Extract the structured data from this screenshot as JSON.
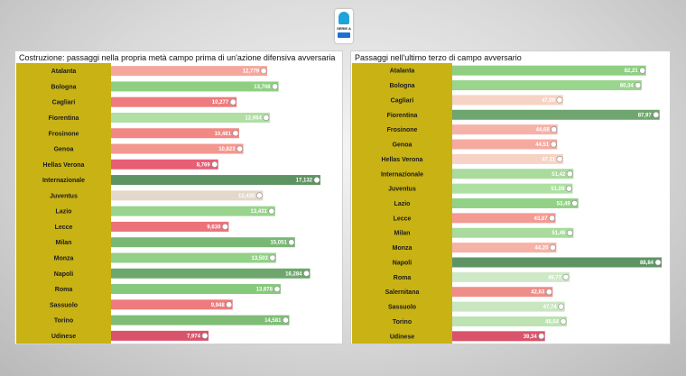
{
  "logo": {
    "text": "SERIE A"
  },
  "chart_data": [
    {
      "type": "bar",
      "orientation": "horizontal",
      "title": "Costruzione: passaggi nella propria metà campo prima di un'azione difensiva avversaria",
      "categories": [
        "Atalanta",
        "Bologna",
        "Cagliari",
        "Fiorentina",
        "Frosinone",
        "Genoa",
        "Hellas Verona",
        "Internazionale",
        "Juventus",
        "Lazio",
        "Lecce",
        "Milan",
        "Monza",
        "Napoli",
        "Roma",
        "Sassuolo",
        "Torino",
        "Udinese"
      ],
      "value_labels": [
        "12,779",
        "13,708",
        "10,277",
        "12,984",
        "10,481",
        "10,823",
        "8,769",
        "17,132",
        "12,435",
        "13,431",
        "9,630",
        "15,051",
        "13,503",
        "16,284",
        "13,878",
        "9,948",
        "14,581",
        "7,974"
      ],
      "values": [
        12.779,
        13.708,
        10.277,
        12.984,
        10.481,
        10.823,
        8.769,
        17.132,
        12.435,
        13.431,
        9.63,
        15.051,
        13.503,
        16.284,
        13.878,
        9.948,
        14.581,
        7.974
      ],
      "colors": [
        "#f5a79e",
        "#8fcf82",
        "#ee7b7d",
        "#b0dea3",
        "#f18884",
        "#f3988f",
        "#e85e75",
        "#5e9463",
        "#e4d8ca",
        "#99d48d",
        "#ec727a",
        "#78b874",
        "#93d186",
        "#6ea76c",
        "#85c97a",
        "#ee7b7d",
        "#7fbd76",
        "#d9536a"
      ],
      "xlim": [
        0,
        17.132
      ]
    },
    {
      "type": "bar",
      "orientation": "horizontal",
      "title": "Passaggi nell'ultimo terzo di campo avversario",
      "categories": [
        "Atalanta",
        "Bologna",
        "Cagliari",
        "Fiorentina",
        "Frosinone",
        "Genoa",
        "Hellas Verona",
        "Internazionale",
        "Juventus",
        "Lazio",
        "Lecce",
        "Milan",
        "Monza",
        "Napoli",
        "Roma",
        "Salernitana",
        "Sassuolo",
        "Torino",
        "Udinese"
      ],
      "value_labels": [
        "82,21",
        "80,34",
        "47,09",
        "87,97",
        "44,68",
        "44,51",
        "47,11",
        "51,42",
        "51,09",
        "53,49",
        "43,87",
        "51,46",
        "44,20",
        "88,84",
        "49,77",
        "42,63",
        "47,74",
        "48,64",
        "39,34"
      ],
      "values": [
        82.21,
        80.34,
        47.09,
        87.97,
        44.68,
        44.51,
        47.11,
        51.42,
        51.09,
        53.49,
        43.87,
        51.46,
        44.2,
        88.84,
        49.77,
        42.63,
        47.74,
        48.64,
        39.34
      ],
      "colors": [
        "#8fcf82",
        "#9ad58d",
        "#f6d3c4",
        "#6fa56e",
        "#f6b2a7",
        "#f6a99f",
        "#f6d3c4",
        "#a8db9c",
        "#ade0a1",
        "#93d186",
        "#f39a92",
        "#a8db9c",
        "#f6b2a7",
        "#5e9463",
        "#cfe9c7",
        "#ee8e88",
        "#c9e6c0",
        "#bde3b2",
        "#d9536a"
      ],
      "xlim": [
        0,
        88.84
      ]
    }
  ]
}
